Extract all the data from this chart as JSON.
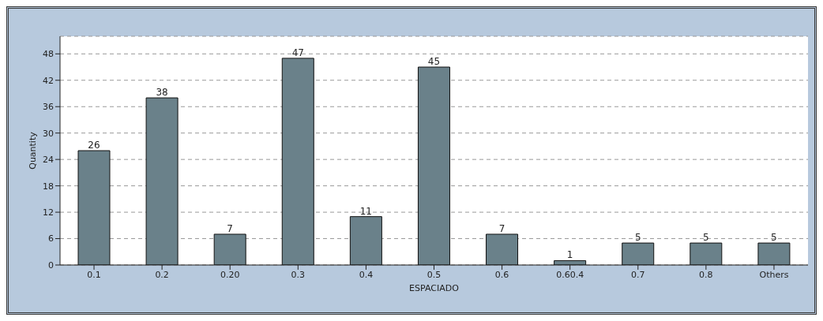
{
  "chart_data": {
    "type": "bar",
    "xlabel": "ESPACIADO",
    "ylabel": "Quantity",
    "categories": [
      "0.1",
      "0.2",
      "0.20",
      "0.3",
      "0.4",
      "0.5",
      "0.6",
      "0.60.4",
      "0.7",
      "0.8",
      "Others"
    ],
    "values": [
      26,
      38,
      7,
      47,
      11,
      45,
      7,
      1,
      5,
      5,
      5
    ],
    "color": "#6a818a",
    "ylim": [
      0,
      52
    ],
    "yticks": [
      0,
      6,
      12,
      18,
      24,
      30,
      36,
      42,
      48
    ],
    "grid": "y",
    "data_labels": true
  }
}
